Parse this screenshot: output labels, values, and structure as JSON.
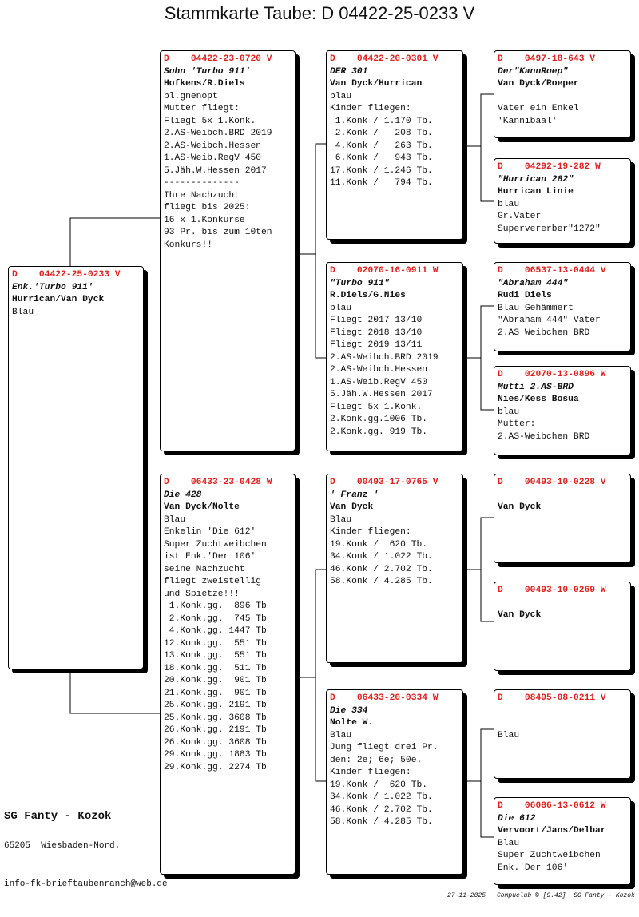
{
  "header": {
    "title": "Stammkarte Taube: D   04422-25-0233 V"
  },
  "nodes": [
    {
      "header": "D    04422-25-0233 V",
      "name": "Enk.'Turbo 911'",
      "breeder": "Hurrican/Van Dyck",
      "lines": [
        "Blau"
      ]
    },
    {
      "header": "D    04422-23-0720 V",
      "name": "Sohn 'Turbo 911'",
      "breeder": "Hofkens/R.Diels",
      "lines": [
        "bl.gnenopt",
        "Mutter fliegt:",
        "Fliegt 5x 1.Konk.",
        "2.AS-Weibch.BRD 2019",
        "2.AS-Weibch.Hessen",
        "1.AS-Weib.RegV 450",
        "5.Jäh.W.Hessen 2017",
        "--------------",
        "Ihre Nachzucht",
        "fliegt bis 2025:",
        "16 x 1.Konkurse",
        "93 Pr. bis zum 10ten",
        "Konkurs!!"
      ]
    },
    {
      "header": "D    06433-23-0428 W",
      "name": "Die 428",
      "breeder": "Van Dyck/Nolte",
      "lines": [
        "Blau",
        "Enkelin 'Die 612'",
        "Super Zuchtweibchen",
        "ist Enk.'Der 106'",
        "seine Nachzucht",
        "fliegt zweistellig",
        "und Spietze!!!",
        " 1.Konk.gg.  896 Tb",
        " 2.Konk.gg.  745 Tb",
        " 4.Konk.gg. 1447 Tb",
        "12.Konk.gg.  551 Tb",
        "13.Konk.gg.  551 Tb",
        "18.Konk.gg.  511 Tb",
        "20.Konk.gg.  901 Tb",
        "21.Konk.gg.  901 Tb",
        "25.Konk.gg. 2191 Tb",
        "25.Konk.gg. 3608 Tb",
        "26.Konk.gg. 2191 Tb",
        "26.Konk.gg. 3608 Tb",
        "29.Konk.gg. 1883 Tb",
        "29.Konk.gg. 2274 Tb"
      ]
    },
    {
      "header": "D    04422-20-0301 V",
      "name": "DER 301",
      "breeder": "Van Dyck/Hurrican",
      "lines": [
        "blau",
        "Kinder fliegen:",
        " 1.Konk / 1.170 Tb.",
        " 2.Konk /   208 Tb.",
        " 4.Konk /   263 Tb.",
        " 6.Konk /   943 Tb.",
        "17.Konk / 1.246 Tb.",
        "11.Konk /   794 Tb."
      ]
    },
    {
      "header": "D    02070-16-0911 W",
      "name": "\"Turbo 911\"",
      "breeder": "R.Diels/G.Nies",
      "lines": [
        "blau",
        "Fliegt 2017 13/10",
        "Fliegt 2018 13/10",
        "Fliegt 2019 13/11",
        "2.AS-Weibch.BRD 2019",
        "2.AS-Weibch.Hessen",
        "1.AS-Weib.RegV 450",
        "5.Jäh.W.Hessen 2017",
        "Fliegt 5x 1.Konk.",
        "2.Konk.gg.1006 Tb.",
        "2.Konk.gg. 919 Tb."
      ]
    },
    {
      "header": "D    00493-17-0765 V",
      "name": "' Franz '",
      "breeder": "Van Dyck",
      "lines": [
        "Blau",
        "Kinder fliegen:",
        "19.Konk /  620 Tb.",
        "34.Konk / 1.022 Tb.",
        "46.Konk / 2.702 Tb.",
        "58.Konk / 4.285 Tb."
      ]
    },
    {
      "header": "D    06433-20-0334 W",
      "name": "Die 334",
      "breeder": "Nolte W.",
      "lines": [
        "Blau",
        "Jung fliegt drei Pr.",
        "den: 2e; 6e; 50e.",
        "Kinder fliegen:",
        "19.Konk /  620 Tb.",
        "34.Konk / 1.022 Tb.",
        "46.Konk / 2.702 Tb.",
        "58.Konk / 4.285 Tb."
      ]
    },
    {
      "header": "D    0497-18-643 V",
      "name": "Der\"KannRoep\"",
      "breeder": "Van Dyck/Roeper",
      "lines": [
        "Vater ein Enkel",
        "'Kannibaal'"
      ]
    },
    {
      "header": "D    04292-19-282 W",
      "name": "\"Hurrican 282\"",
      "breeder": "Hurrican Linie",
      "lines": [
        "blau",
        "Gr.Vater",
        "Supervererber\"1272\""
      ]
    },
    {
      "header": "D    06537-13-0444 V",
      "name": "\"Abraham 444\"",
      "breeder": "Rudi Diels",
      "lines": [
        "Blau Gehämmert",
        "\"Abraham 444\" Vater",
        "2.AS Weibchen BRD"
      ]
    },
    {
      "header": "D    02070-13-0896 W",
      "name": "Mutti 2.AS-BRD",
      "breeder": "Nies/Kess Bosua",
      "lines": [
        "blau",
        "Mutter:",
        "2.AS-Weibchen BRD"
      ]
    },
    {
      "header": "D    00493-10-0228 V",
      "breeder": "Van Dyck"
    },
    {
      "header": "D    00493-10-0269 W",
      "breeder": "Van Dyck"
    },
    {
      "header": "D    08495-08-0211 V",
      "lines": [
        "Blau"
      ]
    },
    {
      "header": "D    06086-13-0612 W",
      "name": "Die 612",
      "breeder": "Vervoort/Jans/Delbar",
      "lines": [
        "Blau",
        "Super Zuchtweibchen",
        "Enk.'Der 106'"
      ]
    }
  ],
  "footer": {
    "club": "SG Fanty - Kozok",
    "address": "65205  Wiesbaden-Nord.",
    "email": "info-fk-brieftaubenranch@web.de",
    "date": "27-11-2025",
    "software": "Compuclub © [9.42]  SG Fanty - Kozok"
  }
}
